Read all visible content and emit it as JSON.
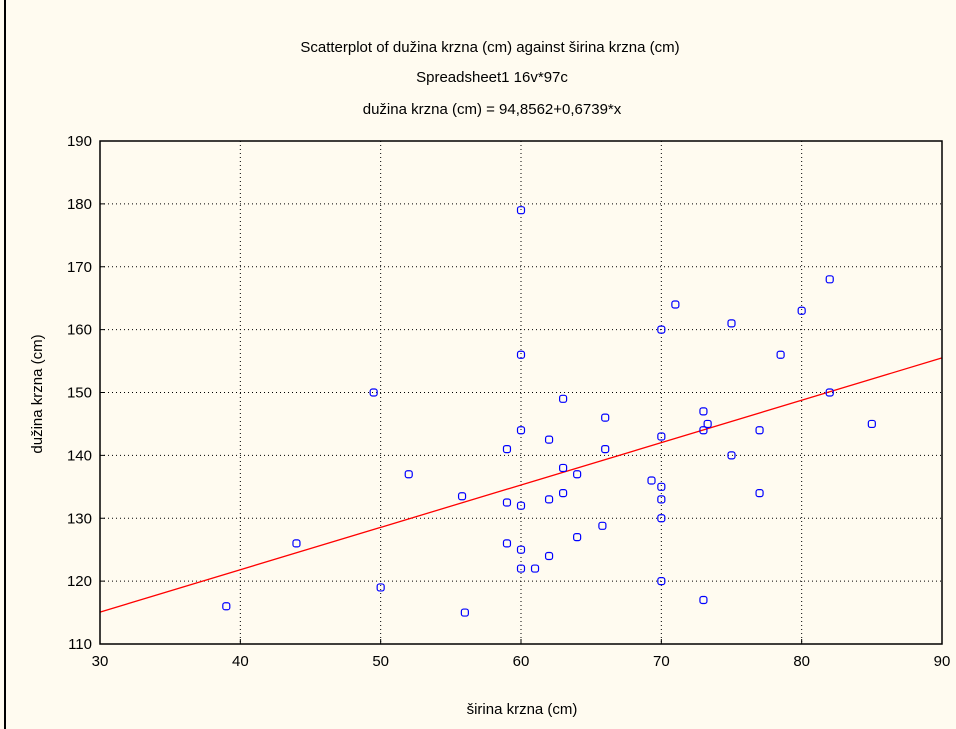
{
  "chart_data": {
    "type": "scatter",
    "title": "Scatterplot of dužina krzna (cm) against širina krzna (cm)",
    "subtitle": "Spreadsheet1 16v*97c",
    "equation": "dužina krzna (cm) = 94,8562+0,6739*x",
    "xlabel": "širina krzna (cm)",
    "ylabel": "dužina krzna (cm)",
    "xlim": [
      30,
      90
    ],
    "ylim": [
      110,
      190
    ],
    "xticks": [
      "30",
      "40",
      "50",
      "60",
      "70",
      "80",
      "90"
    ],
    "yticks": [
      "110",
      "120",
      "130",
      "140",
      "150",
      "160",
      "170",
      "180",
      "190"
    ],
    "grid": true,
    "regression": {
      "intercept": 94.8562,
      "slope": 0.6739
    },
    "colors": {
      "points": "#0000ff",
      "line": "#ff0000",
      "grid": "#000000",
      "background": "#fffbf0"
    },
    "points": [
      [
        39,
        116
      ],
      [
        44,
        126
      ],
      [
        49.5,
        150
      ],
      [
        50,
        119
      ],
      [
        52,
        137
      ],
      [
        55.8,
        133.5
      ],
      [
        56,
        115
      ],
      [
        59,
        141
      ],
      [
        59,
        132.5
      ],
      [
        59,
        126
      ],
      [
        60,
        179
      ],
      [
        60,
        156
      ],
      [
        60,
        144
      ],
      [
        60,
        132
      ],
      [
        60,
        125
      ],
      [
        60,
        122
      ],
      [
        61,
        122
      ],
      [
        62,
        142.5
      ],
      [
        62,
        133
      ],
      [
        62,
        124
      ],
      [
        63,
        149
      ],
      [
        63,
        138
      ],
      [
        63,
        134
      ],
      [
        64,
        137
      ],
      [
        64,
        127
      ],
      [
        65.8,
        128.8
      ],
      [
        66,
        146
      ],
      [
        66,
        141
      ],
      [
        69.3,
        136
      ],
      [
        70,
        160
      ],
      [
        70,
        143
      ],
      [
        70,
        135
      ],
      [
        70,
        133
      ],
      [
        70,
        130
      ],
      [
        70,
        120
      ],
      [
        71,
        164
      ],
      [
        73,
        147
      ],
      [
        73,
        144
      ],
      [
        73.3,
        145
      ],
      [
        73,
        117
      ],
      [
        75,
        161
      ],
      [
        75,
        140
      ],
      [
        77,
        144
      ],
      [
        77,
        134
      ],
      [
        78.5,
        156
      ],
      [
        80,
        163
      ],
      [
        82,
        168
      ],
      [
        82,
        150
      ],
      [
        85,
        145
      ]
    ]
  }
}
